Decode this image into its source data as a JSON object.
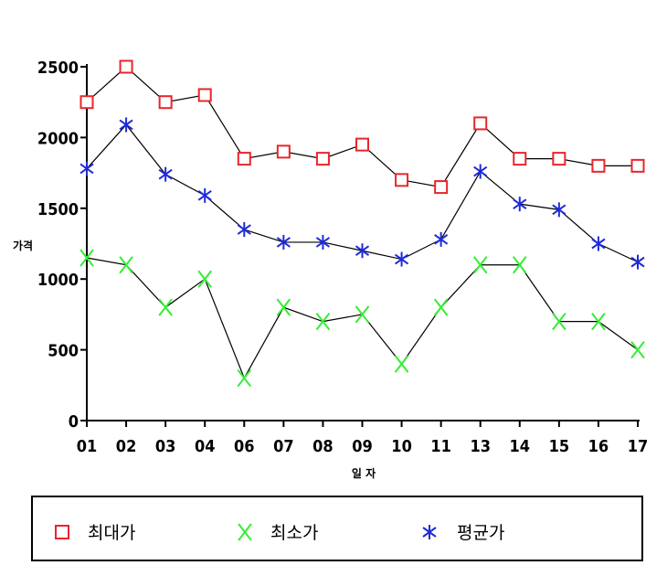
{
  "chart_data": {
    "type": "line",
    "xlabel": "일 자",
    "ylabel": "가격",
    "categories": [
      "01",
      "02",
      "03",
      "04",
      "06",
      "07",
      "08",
      "09",
      "10",
      "11",
      "13",
      "14",
      "15",
      "16",
      "17"
    ],
    "ylim": [
      0,
      2500
    ],
    "yticks": [
      0,
      500,
      1000,
      1500,
      2000,
      2500
    ],
    "grid": false,
    "legend_position": "bottom",
    "series": [
      {
        "name": "최대가",
        "marker": "square",
        "color": "#e8262b",
        "values": [
          2250,
          2500,
          2250,
          2300,
          1850,
          1900,
          1850,
          1950,
          1700,
          1650,
          2100,
          1850,
          1850,
          1800,
          1800
        ]
      },
      {
        "name": "최소가",
        "marker": "x",
        "color": "#33ee33",
        "values": [
          1150,
          1100,
          800,
          1000,
          300,
          800,
          700,
          750,
          400,
          800,
          1100,
          1100,
          700,
          700,
          500
        ]
      },
      {
        "name": "평균가",
        "marker": "asterisk",
        "color": "#1f2bd8",
        "values": [
          1780,
          2090,
          1740,
          1590,
          1350,
          1260,
          1260,
          1200,
          1140,
          1280,
          1760,
          1530,
          1490,
          1250,
          1120
        ]
      }
    ]
  }
}
